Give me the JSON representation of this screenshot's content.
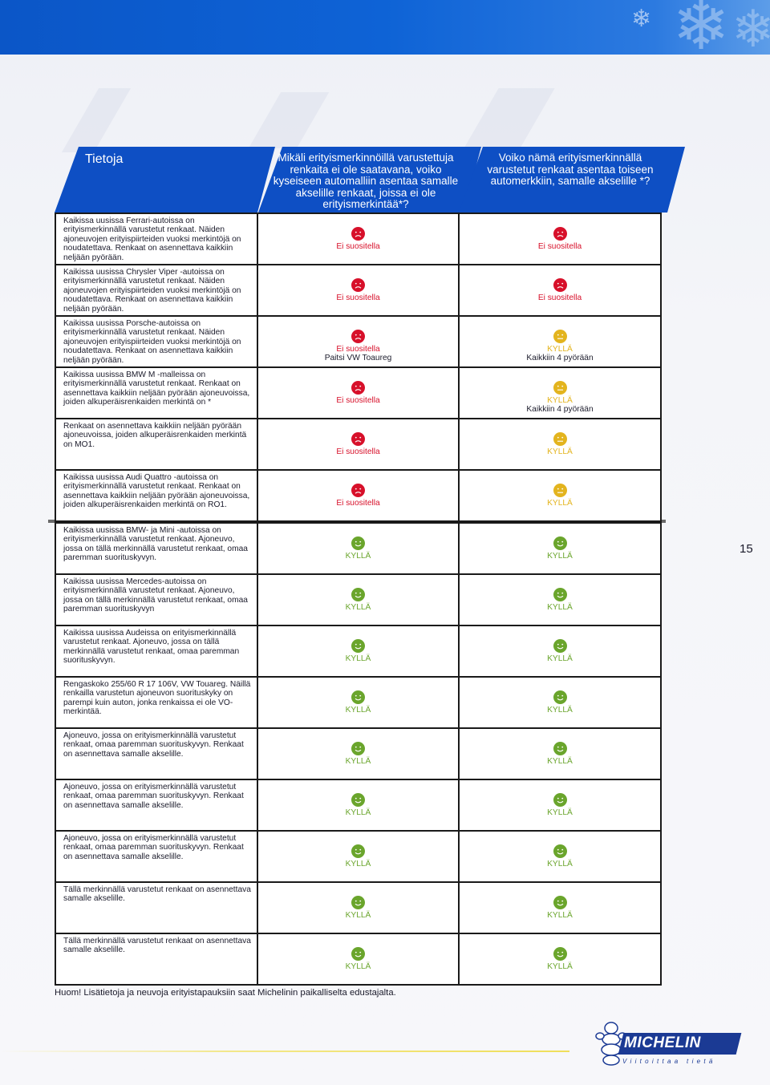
{
  "header": {
    "col0": "Tietoja",
    "col1": "Mikäli erityismerkinnöillä varustettuja renkaita ei ole saatavana, voiko kyseiseen automalliin asentaa samalle akselille renkaat, joissa ei ole erityismerkintää*?",
    "col2": "Voiko nämä erityismerkinnällä varustetut renkaat asentaa toiseen automerkkiin, samalle akselille *?"
  },
  "colors": {
    "header_blue": "#0e4fc4",
    "top_band": "#0b56c7",
    "red": "#d7102a",
    "yellow": "#e3b41e",
    "green": "#6aa52c"
  },
  "rows": [
    {
      "desc": "Kaikissa uusissa Ferrari-autoissa on erityismerkinnällä varustetut renkaat. Näiden ajoneuvojen erityispiirteiden vuoksi merkintöjä on noudatettava. Renkaat on asennettava kaikkiin neljään pyörään.",
      "c1": {
        "type": "red",
        "label": "Ei suositella",
        "extra": ""
      },
      "c2": {
        "type": "red",
        "label": "Ei suositella",
        "extra": ""
      }
    },
    {
      "desc": "Kaikissa uusissa Chrysler Viper -autoissa on erityismerkinnällä varustetut renkaat. Näiden ajoneuvojen erityispiirteiden vuoksi merkintöjä on noudatettava. Renkaat on asennettava kaikkiin neljään pyörään.",
      "c1": {
        "type": "red",
        "label": "Ei suositella",
        "extra": ""
      },
      "c2": {
        "type": "red",
        "label": "Ei suositella",
        "extra": ""
      }
    },
    {
      "desc": "Kaikissa uusissa Porsche-autoissa on erityismerkinnällä  varustetut renkaat. Näiden ajoneuvojen erityispiirteiden vuoksi merkintöjä on noudatettava. Renkaat on asennettava kaikkiin neljään pyörään.",
      "c1": {
        "type": "red",
        "label": "Ei suositella",
        "extra": "Paitsi  VW Toaureg"
      },
      "c2": {
        "type": "yellow",
        "label": "KYLLÄ",
        "extra": "Kaikkiin 4 pyörään"
      }
    },
    {
      "desc": "Kaikissa uusissa BMW M -malleissa on erityismerkinnällä varustetut renkaat. Renkaat on asennettava kaikkiin neljään pyörään ajoneuvoissa, joiden alkuperäisrenkaiden merkintä on *",
      "c1": {
        "type": "red",
        "label": "Ei suositella",
        "extra": ""
      },
      "c2": {
        "type": "yellow",
        "label": "KYLLÄ",
        "extra": "Kaikkiin 4 pyörään"
      }
    },
    {
      "desc": "Renkaat on asennettava kaikkiin neljään pyörään ajoneuvoissa, joiden alkuperäisrenkaiden merkintä on MO1.",
      "c1": {
        "type": "red",
        "label": "Ei suositella",
        "extra": ""
      },
      "c2": {
        "type": "yellow",
        "label": "KYLLÄ",
        "extra": ""
      }
    },
    {
      "desc": "Kaikissa uusissa Audi Quattro -autoissa on erityismerkinnällä varustetut renkaat. Renkaat on asennettava kaikkiin neljään pyörään ajoneuvoissa, joiden alkuperäisrenkaiden merkintä on RO1.",
      "c1": {
        "type": "red",
        "label": "Ei suositella",
        "extra": ""
      },
      "c2": {
        "type": "yellow",
        "label": "KYLLÄ",
        "extra": ""
      }
    },
    {
      "desc": "Kaikissa uusissa BMW- ja Mini -autoissa on erityismerkinnällä varustetut renkaat. Ajoneuvo, jossa on tällä merkinnällä varustetut renkaat, omaa paremman suorituskyvyn.",
      "c1": {
        "type": "green",
        "label": "KYLLÄ",
        "extra": ""
      },
      "c2": {
        "type": "green",
        "label": "KYLLÄ",
        "extra": ""
      }
    },
    {
      "desc": "Kaikissa uusissa Mercedes-autoissa on erityismerkinnällä  varustetut renkaat. Ajoneuvo, jossa on tällä merkinnällä varustetut renkaat, omaa paremman suorituskyvyn",
      "c1": {
        "type": "green",
        "label": "KYLLÄ",
        "extra": ""
      },
      "c2": {
        "type": "green",
        "label": "KYLLÄ",
        "extra": ""
      }
    },
    {
      "desc": "Kaikissa uusissa Audeissa on erityismerkinnällä varustetut renkaat. Ajoneuvo, jossa on tällä merkinnällä varustetut renkaat, omaa paremman suorituskyvyn.",
      "c1": {
        "type": "green",
        "label": "KYLLÄ",
        "extra": ""
      },
      "c2": {
        "type": "green",
        "label": "KYLLÄ",
        "extra": ""
      }
    },
    {
      "desc": "Rengaskoko 255/60 R 17 106V, VW Touareg. Näillä renkailla varustetun ajoneuvon suorituskyky on parempi kuin auton, jonka renkaissa ei ole VO-merkintää.",
      "c1": {
        "type": "green",
        "label": "KYLLÄ",
        "extra": ""
      },
      "c2": {
        "type": "green",
        "label": "KYLLÄ",
        "extra": ""
      }
    },
    {
      "desc": "Ajoneuvo, jossa on erityismerkinnällä varustetut renkaat, omaa paremman suorituskyvyn. Renkaat on asennettava samalle akselille.",
      "c1": {
        "type": "green",
        "label": "KYLLÄ",
        "extra": ""
      },
      "c2": {
        "type": "green",
        "label": "KYLLÄ",
        "extra": ""
      }
    },
    {
      "desc": "Ajoneuvo, jossa on erityismerkinnällä varustetut renkaat, omaa paremman suorituskyvyn. Renkaat on asennettava samalle akselille.",
      "c1": {
        "type": "green",
        "label": "KYLLÄ",
        "extra": ""
      },
      "c2": {
        "type": "green",
        "label": "KYLLÄ",
        "extra": ""
      }
    },
    {
      "desc": "Ajoneuvo, jossa on erityismerkinnällä varustetut renkaat, omaa paremman suorituskyvyn. Renkaat on asennettava samalle akselille.",
      "c1": {
        "type": "green",
        "label": "KYLLÄ",
        "extra": ""
      },
      "c2": {
        "type": "green",
        "label": "KYLLÄ",
        "extra": ""
      }
    },
    {
      "desc": "Tällä merkinnällä varustetut renkaat on asennettava samalle akselille.",
      "c1": {
        "type": "green",
        "label": "KYLLÄ",
        "extra": ""
      },
      "c2": {
        "type": "green",
        "label": "KYLLÄ",
        "extra": ""
      }
    },
    {
      "desc": "Tällä merkinnällä varustetut renkaat on asennettava samalle akselille.",
      "c1": {
        "type": "green",
        "label": "KYLLÄ",
        "extra": ""
      },
      "c2": {
        "type": "green",
        "label": "KYLLÄ",
        "extra": ""
      }
    }
  ],
  "page_number": "15",
  "footnote": "Huom! Lisätietoja ja neuvoja erityistapauksiin saat Michelinin paikalliselta edustajalta.",
  "logo": {
    "brand": "MICHELIN",
    "tagline": "Viitoittaa tietä"
  }
}
